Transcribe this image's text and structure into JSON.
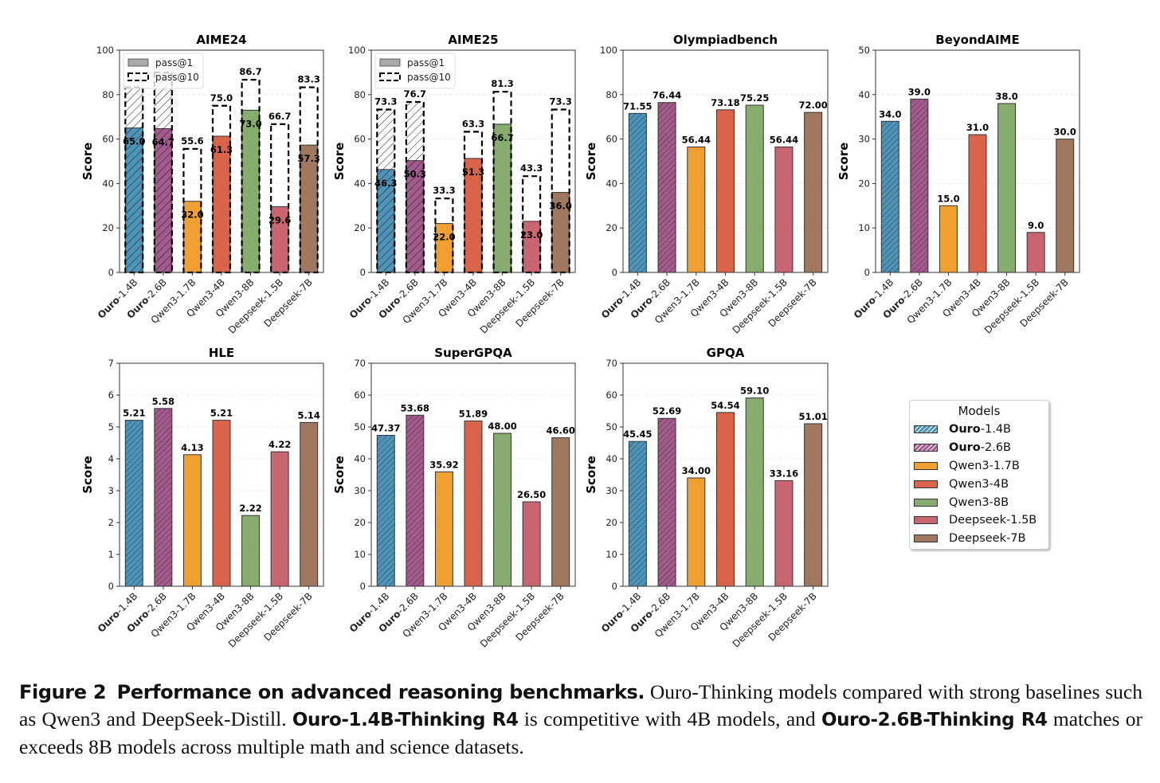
{
  "models": [
    {
      "name": "Ouro-1.4B",
      "bold_part": "Ouro",
      "rest": "-1.4B",
      "color": "#4E94B8",
      "hatch": true
    },
    {
      "name": "Ouro-2.6B",
      "bold_part": "Ouro",
      "rest": "-2.6B",
      "color": "#A35A8C",
      "hatch": true
    },
    {
      "name": "Qwen3-1.7B",
      "bold_part": "",
      "rest": "Qwen3-1.7B",
      "color": "#F0A030",
      "hatch": false
    },
    {
      "name": "Qwen3-4B",
      "bold_part": "",
      "rest": "Qwen3-4B",
      "color": "#D9644A",
      "hatch": false
    },
    {
      "name": "Qwen3-8B",
      "bold_part": "",
      "rest": "Qwen3-8B",
      "color": "#86AD6E",
      "hatch": false
    },
    {
      "name": "Deepseek-1.5B",
      "bold_part": "",
      "rest": "Deepseek-1.5B",
      "color": "#C96570",
      "hatch": false
    },
    {
      "name": "Deepseek-7B",
      "bold_part": "",
      "rest": "Deepseek-7B",
      "color": "#A07860",
      "hatch": false
    }
  ],
  "legend": {
    "title": "Models",
    "pass_legend": {
      "pass1": "pass@1",
      "pass10": "pass@10"
    }
  },
  "chart_data": [
    {
      "type": "bar",
      "title": "AIME24",
      "ylabel": "Score",
      "ylim": [
        0,
        100
      ],
      "yticks": [
        0,
        20,
        40,
        60,
        80,
        100
      ],
      "categories": [
        "Ouro-1.4B",
        "Ouro-2.6B",
        "Qwen3-1.7B",
        "Qwen3-4B",
        "Qwen3-8B",
        "Deepseek-1.5B",
        "Deepseek-7B"
      ],
      "series": [
        {
          "name": "pass@1",
          "values": [
            65.0,
            64.7,
            32.0,
            61.3,
            73.0,
            29.6,
            57.3
          ]
        },
        {
          "name": "pass@10",
          "values": [
            83.3,
            90.0,
            55.6,
            75.0,
            86.7,
            66.7,
            83.3
          ],
          "labels_hidden": [
            true,
            true,
            false,
            false,
            false,
            false,
            false
          ]
        }
      ],
      "legend": "top-left",
      "grid": true
    },
    {
      "type": "bar",
      "title": "AIME25",
      "ylabel": "Score",
      "ylim": [
        0,
        100
      ],
      "yticks": [
        0,
        20,
        40,
        60,
        80,
        100
      ],
      "categories": [
        "Ouro-1.4B",
        "Ouro-2.6B",
        "Qwen3-1.7B",
        "Qwen3-4B",
        "Qwen3-8B",
        "Deepseek-1.5B",
        "Deepseek-7B"
      ],
      "series": [
        {
          "name": "pass@1",
          "values": [
            46.3,
            50.3,
            22.0,
            51.3,
            66.7,
            23.0,
            36.0
          ]
        },
        {
          "name": "pass@10",
          "values": [
            73.3,
            76.7,
            33.3,
            63.3,
            81.3,
            43.3,
            73.3
          ]
        }
      ],
      "legend": "top-left",
      "grid": true
    },
    {
      "type": "bar",
      "title": "Olympiadbench",
      "ylabel": "Score",
      "ylim": [
        0,
        100
      ],
      "yticks": [
        0,
        20,
        40,
        60,
        80,
        100
      ],
      "categories": [
        "Ouro-1.4B",
        "Ouro-2.6B",
        "Qwen3-1.7B",
        "Qwen3-4B",
        "Qwen3-8B",
        "Deepseek-1.5B",
        "Deepseek-7B"
      ],
      "values": [
        71.55,
        76.44,
        56.44,
        73.18,
        75.25,
        56.44,
        72.0
      ],
      "labels": [
        "71.55",
        "76.44",
        "56.44",
        "73.18",
        "75.25",
        "56.44",
        "72.00"
      ],
      "grid": true
    },
    {
      "type": "bar",
      "title": "BeyondAIME",
      "ylabel": "Score",
      "ylim": [
        0,
        50
      ],
      "yticks": [
        0,
        10,
        20,
        30,
        40,
        50
      ],
      "categories": [
        "Ouro-1.4B",
        "Ouro-2.6B",
        "Qwen3-1.7B",
        "Qwen3-4B",
        "Qwen3-8B",
        "Deepseek-1.5B",
        "Deepseek-7B"
      ],
      "values": [
        34.0,
        39.0,
        15.0,
        31.0,
        38.0,
        9.0,
        30.0
      ],
      "labels": [
        "34.0",
        "39.0",
        "15.0",
        "31.0",
        "38.0",
        "9.0",
        "30.0"
      ],
      "grid": true
    },
    {
      "type": "bar",
      "title": "HLE",
      "ylabel": "Score",
      "ylim": [
        0,
        7
      ],
      "yticks": [
        0,
        1,
        2,
        3,
        4,
        5,
        6,
        7
      ],
      "categories": [
        "Ouro-1.4B",
        "Ouro-2.6B",
        "Qwen3-1.7B",
        "Qwen3-4B",
        "Qwen3-8B",
        "Deepseek-1.5B",
        "Deepseek-7B"
      ],
      "values": [
        5.21,
        5.58,
        4.13,
        5.21,
        2.22,
        4.22,
        5.14
      ],
      "labels": [
        "5.21",
        "5.58",
        "4.13",
        "5.21",
        "2.22",
        "4.22",
        "5.14"
      ],
      "grid": true
    },
    {
      "type": "bar",
      "title": "SuperGPQA",
      "ylabel": "Score",
      "ylim": [
        0,
        70
      ],
      "yticks": [
        0,
        10,
        20,
        30,
        40,
        50,
        60,
        70
      ],
      "categories": [
        "Ouro-1.4B",
        "Ouro-2.6B",
        "Qwen3-1.7B",
        "Qwen3-4B",
        "Qwen3-8B",
        "Deepseek-1.5B",
        "Deepseek-7B"
      ],
      "values": [
        47.37,
        53.68,
        35.92,
        51.89,
        48.0,
        26.5,
        46.6
      ],
      "labels": [
        "47.37",
        "53.68",
        "35.92",
        "51.89",
        "48.00",
        "26.50",
        "46.60"
      ],
      "grid": true
    },
    {
      "type": "bar",
      "title": "GPQA",
      "ylabel": "Score",
      "ylim": [
        0,
        70
      ],
      "yticks": [
        0,
        10,
        20,
        30,
        40,
        50,
        60,
        70
      ],
      "categories": [
        "Ouro-1.4B",
        "Ouro-2.6B",
        "Qwen3-1.7B",
        "Qwen3-4B",
        "Qwen3-8B",
        "Deepseek-1.5B",
        "Deepseek-7B"
      ],
      "values": [
        45.45,
        52.69,
        34.0,
        54.54,
        59.1,
        33.16,
        51.01
      ],
      "labels": [
        "45.45",
        "52.69",
        "34.00",
        "54.54",
        "59.10",
        "33.16",
        "51.01"
      ],
      "grid": true
    }
  ],
  "caption": {
    "figure_label": "Figure 2",
    "title": "Performance on advanced reasoning benchmarks.",
    "text1": " Ouro-Thinking models compared with strong baselines such as Qwen3 and DeepSeek-Distill. ",
    "bold1": "Ouro-1.4B-Thinking R4",
    "text2": " is competitive with 4B models, and ",
    "bold2": "Ouro-2.6B-Thinking R4",
    "text3": " matches or exceeds 8B models across multiple math and science datasets."
  }
}
